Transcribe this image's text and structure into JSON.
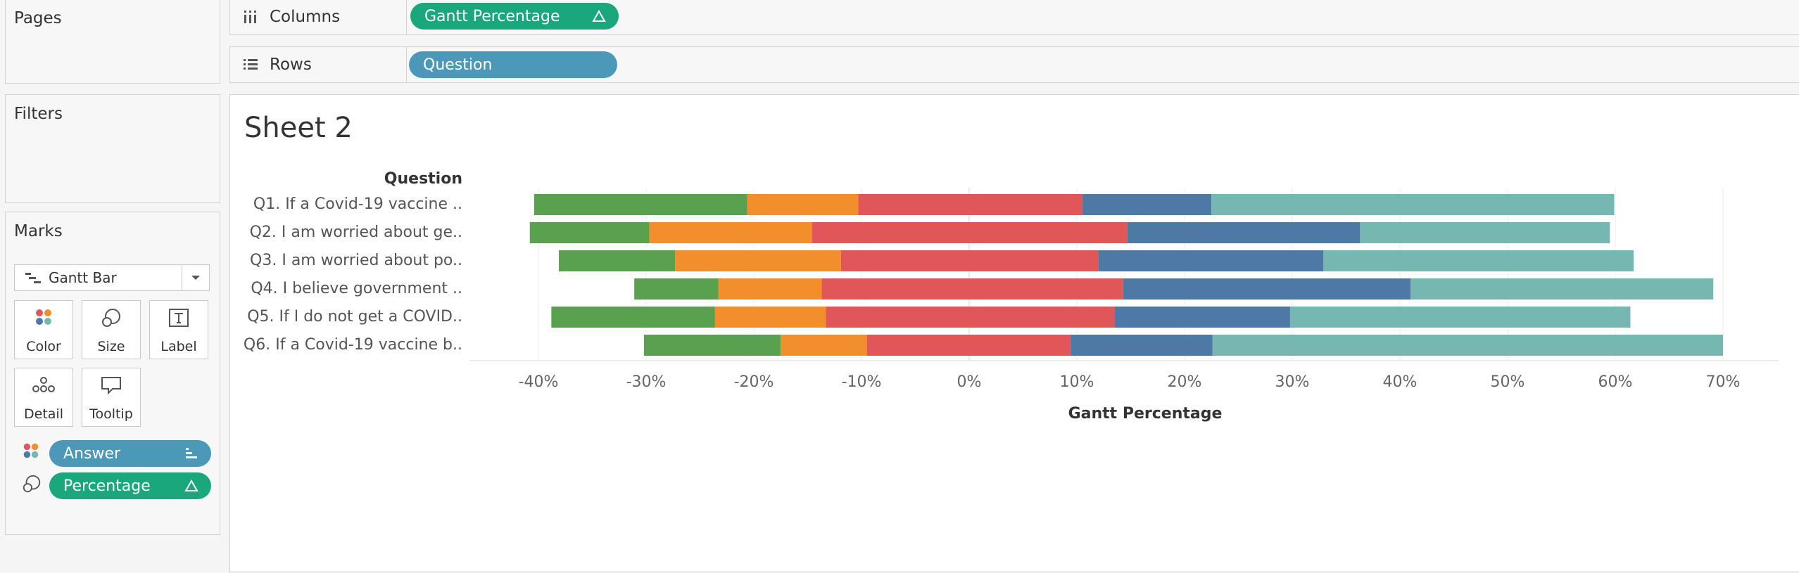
{
  "pages": {
    "title": "Pages"
  },
  "filters": {
    "title": "Filters"
  },
  "marks": {
    "title": "Marks",
    "mark_type": "Gantt Bar",
    "buttons": {
      "color": "Color",
      "size": "Size",
      "label": "Label",
      "detail": "Detail",
      "tooltip": "Tooltip"
    },
    "fields": [
      {
        "label": "Answer",
        "encoding": "color"
      },
      {
        "label": "Percentage",
        "encoding": "size"
      }
    ]
  },
  "shelves": {
    "columns": {
      "label": "Columns",
      "pill": "Gantt Percentage"
    },
    "rows": {
      "label": "Rows",
      "pill": "Question"
    }
  },
  "sheet": {
    "title": "Sheet 2"
  },
  "colors": {
    "green": "#59a14f",
    "orange": "#f28e2b",
    "red": "#e15759",
    "blue": "#4e79a7",
    "teal": "#76b7b2",
    "pill_blue": "#4b98b8",
    "pill_green": "#1aa77b"
  },
  "chart_data": {
    "type": "bar",
    "subtype": "diverging stacked gantt",
    "row_header": "Question",
    "xlabel": "Gantt Percentage",
    "xlim": [
      -44,
      72
    ],
    "xticks": [
      "-40%",
      "-30%",
      "-20%",
      "-10%",
      "0%",
      "10%",
      "20%",
      "30%",
      "40%",
      "50%",
      "60%",
      "70%"
    ],
    "xtick_values": [
      -40,
      -30,
      -20,
      -10,
      0,
      10,
      20,
      30,
      40,
      50,
      60,
      70
    ],
    "grid": true,
    "categories": [
      "Q1. If a Covid-19 vaccine ..",
      "Q2. I am worried about ge..",
      "Q3. I am worried about po..",
      "Q4. I believe government ..",
      "Q5. If I do not get a COVID..",
      "Q6. If a Covid-19 vaccine b.."
    ],
    "series": [
      {
        "color": "green",
        "start": [
          -40.4,
          -40.8,
          -38.1,
          -31.1,
          -38.8,
          -30.2
        ],
        "end": [
          -20.6,
          -29.7,
          -27.3,
          -23.3,
          -23.6,
          -17.5
        ]
      },
      {
        "color": "orange",
        "start": [
          -20.6,
          -29.7,
          -27.3,
          -23.3,
          -23.6,
          -17.5
        ],
        "end": [
          -10.3,
          -14.6,
          -11.9,
          -13.7,
          -13.3,
          -9.5
        ]
      },
      {
        "color": "red",
        "start": [
          -10.3,
          -14.6,
          -11.9,
          -13.7,
          -13.3,
          -9.5
        ],
        "end": [
          10.5,
          14.7,
          12.0,
          14.3,
          13.5,
          9.4
        ]
      },
      {
        "color": "blue",
        "start": [
          10.5,
          14.7,
          12.0,
          14.3,
          13.5,
          9.4
        ],
        "end": [
          22.5,
          36.3,
          32.9,
          41.0,
          29.8,
          22.6
        ]
      },
      {
        "color": "teal",
        "start": [
          22.5,
          36.3,
          32.9,
          41.0,
          29.8,
          22.6
        ],
        "end": [
          59.9,
          59.5,
          61.7,
          69.1,
          61.4,
          70.0
        ]
      }
    ]
  }
}
